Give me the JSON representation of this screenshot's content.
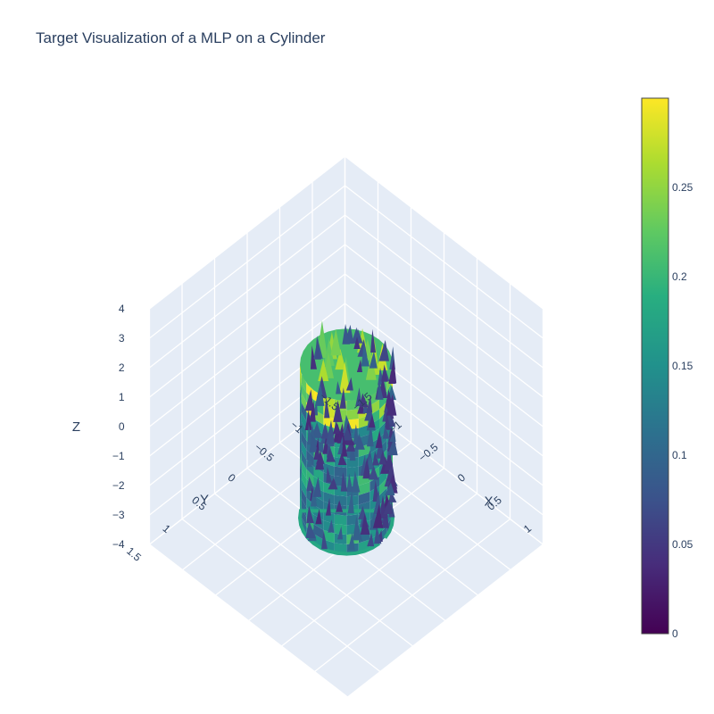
{
  "title": "Target Visualization of a MLP on a Cylinder",
  "chart_data": {
    "type": "surface-3d-cones",
    "title": "Target Visualization of a MLP on a Cylinder",
    "axes": {
      "x": {
        "label": "X",
        "range": [
          -1.5,
          1.5
        ],
        "ticks": [
          "−1.5",
          "−1",
          "−0.5",
          "0",
          "0.5",
          "1"
        ]
      },
      "y": {
        "label": "Y",
        "range": [
          -1.5,
          1.5
        ],
        "ticks": [
          "−1.5",
          "−1",
          "−0.5",
          "0",
          "0.5",
          "1",
          "1.5"
        ]
      },
      "z": {
        "label": "Z",
        "range": [
          -4,
          4
        ],
        "ticks": [
          "−4",
          "−3",
          "−2",
          "−1",
          "0",
          "1",
          "2",
          "3",
          "4"
        ]
      }
    },
    "colorbar": {
      "colorscale": "Viridis",
      "range": [
        0,
        0.3
      ],
      "ticks": [
        "0",
        "0.05",
        "0.1",
        "0.15",
        "0.2",
        "0.25"
      ],
      "tick_values": [
        0,
        0.05,
        0.1,
        0.15,
        0.2,
        0.25
      ]
    },
    "cylinder": {
      "radius": 0.5,
      "z_range": [
        -3.1,
        2.1
      ],
      "top_value": 0.28,
      "body_value": 0.15,
      "cone_value": 0.07
    },
    "grid": true
  }
}
